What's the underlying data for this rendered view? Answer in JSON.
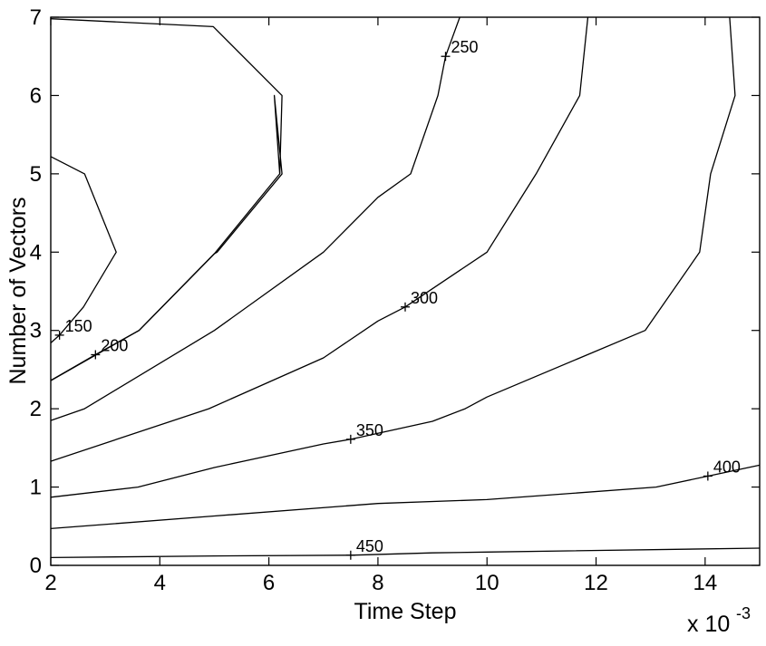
{
  "chart_data": {
    "type": "contour",
    "title": "",
    "xlabel": "Time Step",
    "ylabel": "Number of Vectors",
    "x_multiplier_label": "x 10",
    "x_multiplier_exponent": "-3",
    "xlim": [
      2,
      15
    ],
    "ylim": [
      0,
      7
    ],
    "xticks": [
      2,
      4,
      6,
      8,
      10,
      12,
      14
    ],
    "yticks": [
      0,
      1,
      2,
      3,
      4,
      5,
      6,
      7
    ],
    "grid": false,
    "colors": {
      "line": "#000000",
      "background": "#ffffff"
    },
    "contours": [
      {
        "level": null,
        "label": "",
        "points": [
          [
            2,
            6.98
          ],
          [
            4.98,
            6.88
          ],
          [
            6.24,
            6.0
          ],
          [
            6.2,
            5.0
          ],
          [
            5.0,
            3.98
          ],
          [
            3.62,
            3.0
          ],
          [
            2.0,
            2.36
          ]
        ]
      },
      {
        "level": 150,
        "label": "150",
        "label_at": [
          2.16,
          2.94
        ],
        "points": [
          [
            2,
            5.22
          ],
          [
            2.62,
            5.0
          ],
          [
            3.2,
            4.0
          ],
          [
            2.6,
            3.3
          ],
          [
            2.16,
            2.94
          ],
          [
            2.0,
            2.84
          ]
        ]
      },
      {
        "level": 200,
        "label": "200",
        "label_at": [
          2.82,
          2.69
        ],
        "points": [
          [
            2.0,
            2.36
          ],
          [
            2.82,
            2.69
          ],
          [
            3.62,
            3.0
          ],
          [
            5.0,
            3.98
          ],
          [
            5.05,
            4.0
          ],
          [
            6.24,
            5.0
          ],
          [
            6.1,
            6.0
          ],
          [
            6.2,
            5.0
          ]
        ]
      },
      {
        "level": 250,
        "label": "250",
        "label_at": [
          9.24,
          6.5
        ],
        "points": [
          [
            2.0,
            1.85
          ],
          [
            2.62,
            2.0
          ],
          [
            5.0,
            3.0
          ],
          [
            7.0,
            4.0
          ],
          [
            8.0,
            4.7
          ],
          [
            8.6,
            5.0
          ],
          [
            9.1,
            6.0
          ],
          [
            9.24,
            6.5
          ],
          [
            9.5,
            7.0
          ]
        ]
      },
      {
        "level": 300,
        "label": "300",
        "label_at": [
          8.5,
          3.3
        ],
        "points": [
          [
            2.0,
            1.33
          ],
          [
            4.9,
            2.0
          ],
          [
            7.0,
            2.65
          ],
          [
            8.0,
            3.12
          ],
          [
            8.5,
            3.3
          ],
          [
            10.0,
            4.0
          ],
          [
            10.9,
            5.0
          ],
          [
            11.7,
            6.0
          ],
          [
            11.85,
            7.0
          ]
        ]
      },
      {
        "level": 350,
        "label": "350",
        "label_at": [
          7.5,
          1.61
        ],
        "points": [
          [
            2.0,
            0.87
          ],
          [
            3.6,
            1.0
          ],
          [
            5.0,
            1.25
          ],
          [
            7.0,
            1.55
          ],
          [
            7.5,
            1.61
          ],
          [
            9.0,
            1.84
          ],
          [
            9.6,
            2.0
          ],
          [
            10.0,
            2.15
          ],
          [
            12.9,
            3.0
          ],
          [
            13.9,
            4.0
          ],
          [
            14.1,
            5.0
          ],
          [
            14.55,
            6.0
          ],
          [
            14.45,
            7.0
          ]
        ]
      },
      {
        "level": 400,
        "label": "400",
        "label_at": [
          14.05,
          1.14
        ],
        "points": [
          [
            2.0,
            0.47
          ],
          [
            5.0,
            0.63
          ],
          [
            8.0,
            0.79
          ],
          [
            10.0,
            0.84
          ],
          [
            13.1,
            1.0
          ],
          [
            14.05,
            1.14
          ],
          [
            15.0,
            1.28
          ]
        ]
      },
      {
        "level": 450,
        "label": "450",
        "label_at": [
          7.5,
          0.13
        ],
        "points": [
          [
            2.0,
            0.1
          ],
          [
            5.0,
            0.12
          ],
          [
            7.5,
            0.13
          ],
          [
            9.0,
            0.16
          ],
          [
            10.0,
            0.17
          ],
          [
            15.0,
            0.22
          ]
        ]
      }
    ]
  }
}
